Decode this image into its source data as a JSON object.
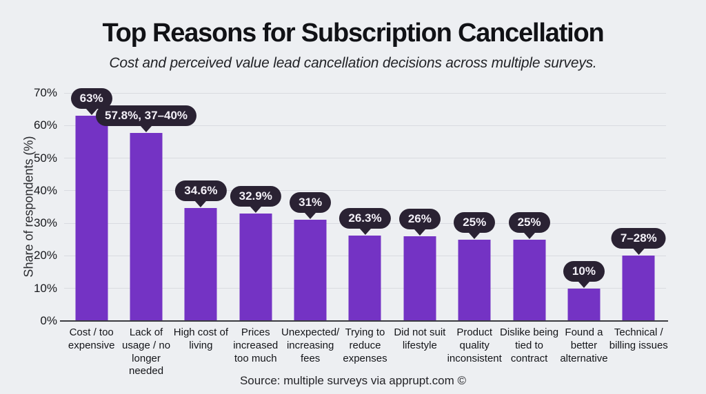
{
  "page": {
    "title": "Top Reasons for Subscription Cancellation",
    "subtitle": "Cost and perceived value lead cancellation decisions across multiple surveys.",
    "source": "Source: multiple surveys via apprupt.com ©"
  },
  "chart_data": {
    "type": "bar",
    "title": "Top Reasons for Subscription Cancellation",
    "subtitle": "Cost and perceived value lead cancellation decisions across multiple surveys.",
    "xlabel": "",
    "ylabel": "Share of respondents (%)",
    "ylim": [
      0,
      70
    ],
    "ytick_step": 10,
    "ytick_suffix": "%",
    "grid": true,
    "legend": false,
    "source": "Source: multiple surveys via apprupt.com ©",
    "categories": [
      "Cost / too expensive",
      "Lack of usage / no longer needed",
      "High cost of living",
      "Prices increased too much",
      "Unexpected/ increasing fees",
      "Trying to reduce expenses",
      "Did not suit lifestyle",
      "Product quality inconsistent",
      "Dislike being tied to contract",
      "Found a better alternative",
      "Technical / billing issues"
    ],
    "values": [
      63,
      57.8,
      34.6,
      32.9,
      31,
      26.3,
      26,
      25,
      25,
      10,
      20
    ],
    "value_labels": [
      "63%",
      "57.8%, 37–40%",
      "34.6%",
      "32.9%",
      "31%",
      "26.3%",
      "26%",
      "25%",
      "25%",
      "10%",
      "7–28%"
    ],
    "colors": {
      "bar": "#7433c4",
      "label_bubble": "#2a2233",
      "label_text": "#f4f1f8",
      "background": "#edeff2",
      "gridline": "#d9dbe0",
      "axis_line": "#3a3b3f",
      "text": "#131418"
    }
  }
}
